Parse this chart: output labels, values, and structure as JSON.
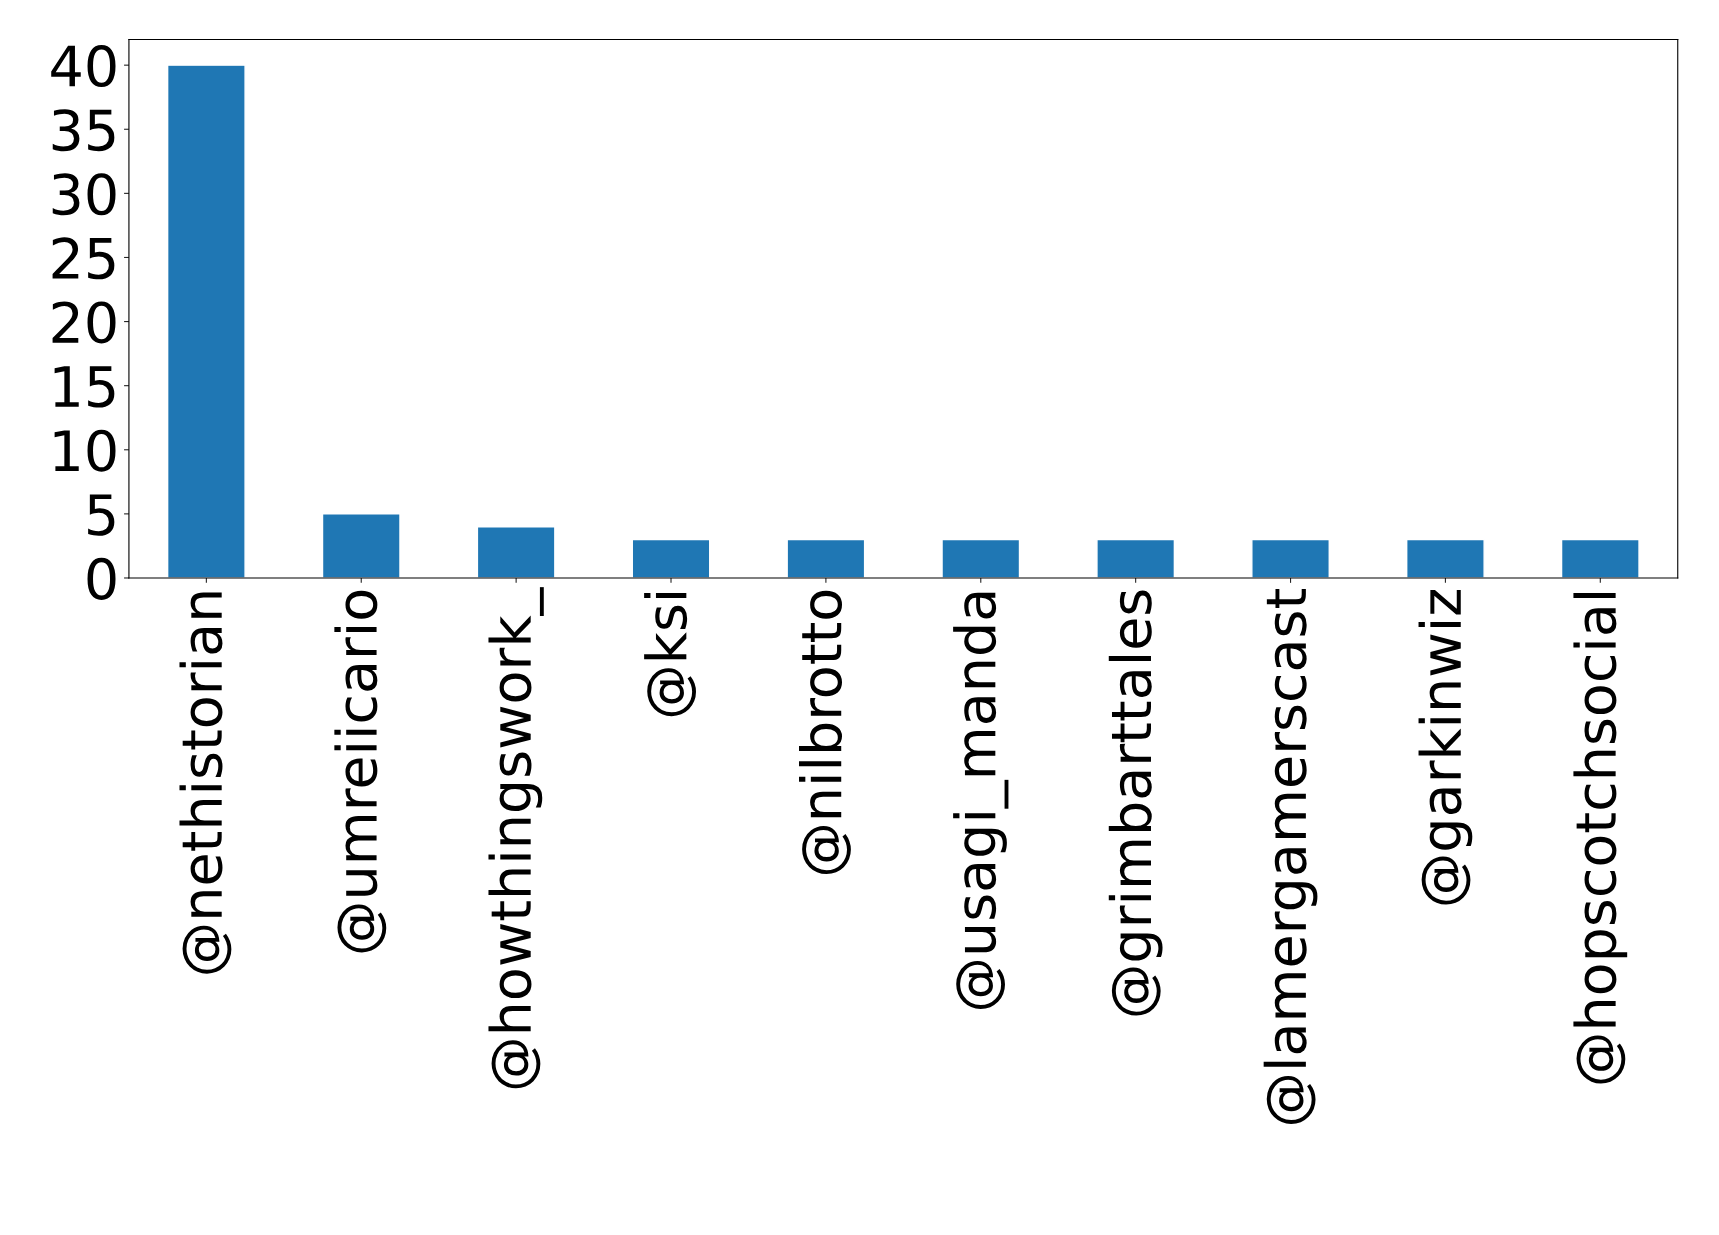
{
  "chart_data": {
    "type": "bar",
    "categories": [
      "@nethistorian",
      "@umreiicario",
      "@howthingswork_",
      "@ksi",
      "@nilbrotto",
      "@usagi_manda",
      "@grimbarttales",
      "@lamergamerscast",
      "@garkinwiz",
      "@hopscotchsocial"
    ],
    "values": [
      40,
      5,
      4,
      3,
      3,
      3,
      3,
      3,
      3,
      3
    ],
    "color": "#1f77b4",
    "ylim": [
      0,
      42
    ],
    "yticks": [
      0,
      5,
      10,
      15,
      20,
      25,
      30,
      35,
      40
    ],
    "grid": false
  }
}
